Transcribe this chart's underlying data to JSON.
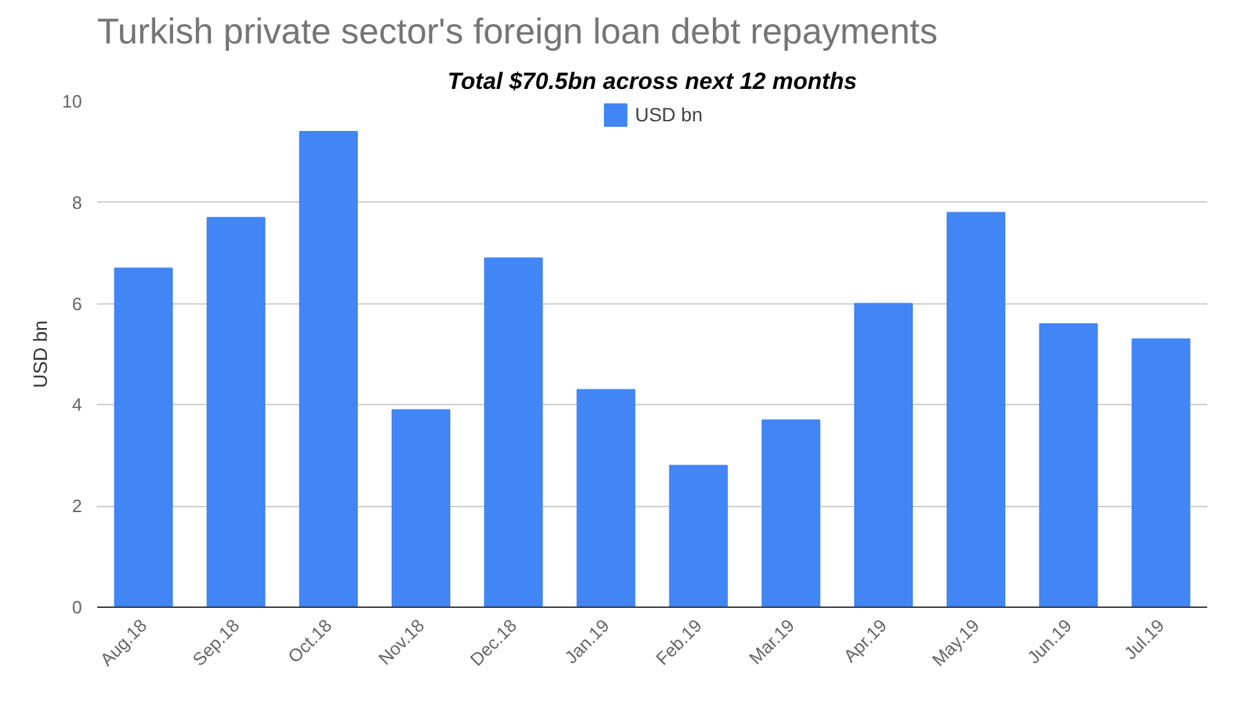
{
  "chart_data": {
    "type": "bar",
    "title": "Turkish private sector's foreign loan debt repayments",
    "subtitle": "Total $70.5bn across next 12 months",
    "ylabel": "USD bn",
    "categories": [
      "Aug.18",
      "Sep.18",
      "Oct.18",
      "Nov.18",
      "Dec.18",
      "Jan.19",
      "Feb.19",
      "Mar.19",
      "Apr.19",
      "May.19",
      "Jun.19",
      "Jul.19"
    ],
    "series": [
      {
        "name": "USD bn",
        "color": "#4285f4",
        "values": [
          6.7,
          7.7,
          9.4,
          3.9,
          6.9,
          4.3,
          2.8,
          3.7,
          6.0,
          7.8,
          5.6,
          5.3
        ]
      }
    ],
    "ylim": [
      0,
      10
    ],
    "yticks": [
      0,
      2,
      4,
      6,
      8,
      10
    ],
    "grid": "y",
    "legend": "top"
  }
}
